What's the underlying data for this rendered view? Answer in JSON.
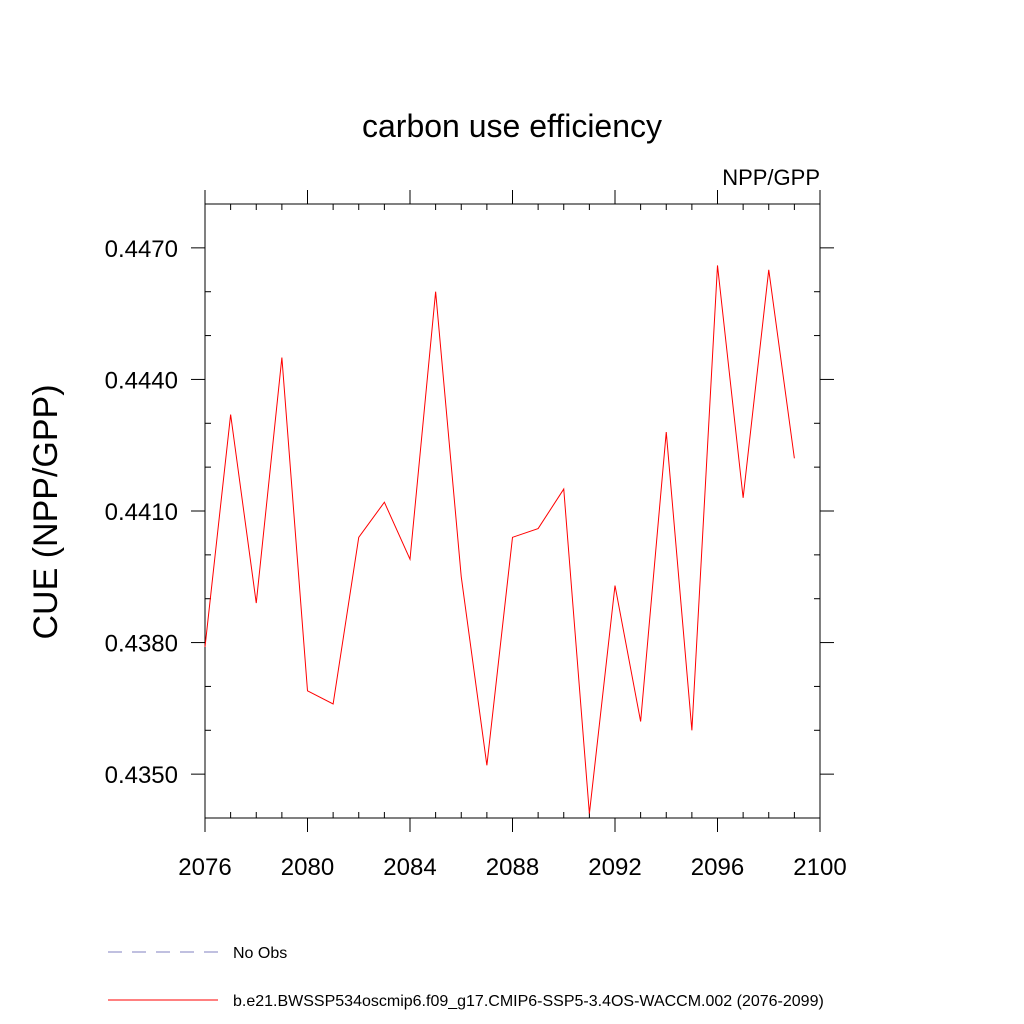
{
  "chart_data": {
    "type": "line",
    "title": "carbon use efficiency",
    "subtitle": "NPP/GPP",
    "xlabel": "",
    "ylabel": "CUE  (NPP/GPP)",
    "xlim": [
      2076,
      2100
    ],
    "ylim": [
      0.434,
      0.448
    ],
    "xticks": [
      2076,
      2080,
      2084,
      2088,
      2092,
      2096,
      2100
    ],
    "xtick_labels": [
      "2076",
      "2080",
      "2084",
      "2088",
      "2092",
      "2096",
      "2100"
    ],
    "yticks": [
      0.435,
      0.438,
      0.441,
      0.444,
      0.447
    ],
    "ytick_labels": [
      "0.4350",
      "0.4380",
      "0.4410",
      "0.4440",
      "0.4470"
    ],
    "x_minor_step": 1,
    "y_minor_step": 0.001,
    "grid": false,
    "legend_position": "bottom",
    "series": [
      {
        "name": "b.e21.BWSSP534oscmip6.f09_g17.CMIP6-SSP5-3.4OS-WACCM.002 (2076-2099)",
        "color": "#ff0000",
        "style": "solid",
        "x": [
          2076,
          2077,
          2078,
          2079,
          2080,
          2081,
          2082,
          2083,
          2084,
          2085,
          2086,
          2087,
          2088,
          2089,
          2090,
          2091,
          2092,
          2093,
          2094,
          2095,
          2096,
          2097,
          2098,
          2099
        ],
        "values": [
          0.4379,
          0.4432,
          0.4389,
          0.4445,
          0.4369,
          0.4366,
          0.4404,
          0.4412,
          0.4399,
          0.446,
          0.4395,
          0.4352,
          0.4404,
          0.4406,
          0.4415,
          0.4341,
          0.4393,
          0.4362,
          0.4428,
          0.436,
          0.4466,
          0.4413,
          0.4465,
          0.4422
        ]
      }
    ],
    "legend": [
      {
        "label": "No Obs",
        "color": "#8080c0",
        "style": "dashed"
      },
      {
        "label": "b.e21.BWSSP534oscmip6.f09_g17.CMIP6-SSP5-3.4OS-WACCM.002 (2076-2099)",
        "color": "#ff0000",
        "style": "solid"
      }
    ]
  }
}
